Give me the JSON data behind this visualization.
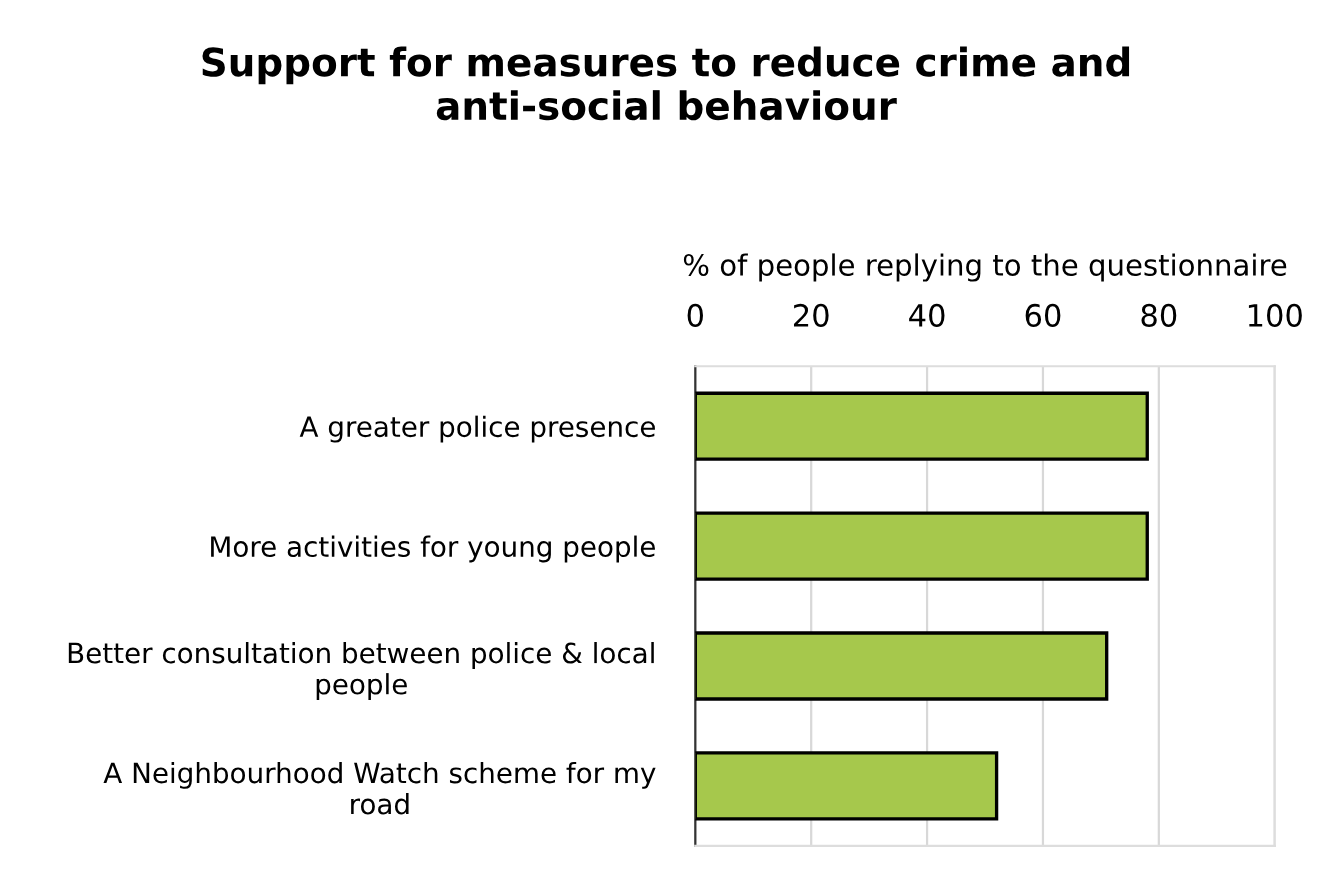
{
  "chart_data": {
    "type": "bar",
    "orientation": "horizontal",
    "title": "Support for measures to reduce crime and\nanti-social behaviour",
    "xlabel": "% of people replying to the questionnaire",
    "categories": [
      "A greater police presence",
      "More activities for young people",
      "Better consultation between police & local\npeople",
      "A Neighbourhood Watch scheme for my\nroad"
    ],
    "values": [
      78,
      78,
      71,
      52
    ],
    "color": "#a6c84c",
    "xlim": [
      0,
      100
    ],
    "xticks": [
      0,
      20,
      40,
      60,
      80,
      100
    ],
    "grid": "x"
  }
}
